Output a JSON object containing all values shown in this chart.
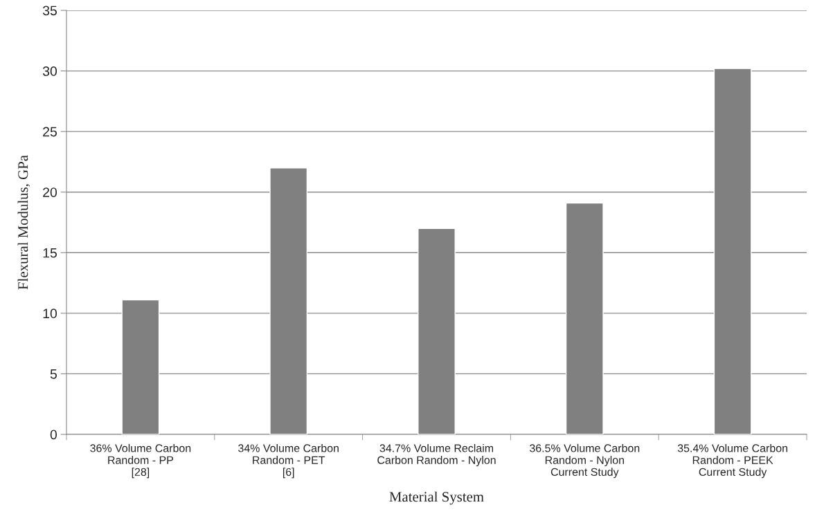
{
  "chart_data": {
    "type": "bar",
    "categories": [
      "36% Volume Carbon\nRandom - PP\n[28]",
      "34% Volume Carbon\nRandom - PET\n[6]",
      "34.7% Volume Reclaim\nCarbon Random - Nylon",
      "36.5% Volume Carbon\nRandom - Nylon\nCurrent Study",
      "35.4% Volume Carbon\nRandom - PEEK\nCurrent Study"
    ],
    "values": [
      11.1,
      22,
      17,
      19.1,
      30.2
    ],
    "color": "#808080",
    "xlabel": "Material System",
    "ylabel": "Flexural Modulus, GPa",
    "ylim": [
      0,
      35
    ],
    "yticks": [
      0,
      5,
      10,
      15,
      20,
      25,
      30,
      35
    ],
    "grid": "y",
    "legend": false
  }
}
